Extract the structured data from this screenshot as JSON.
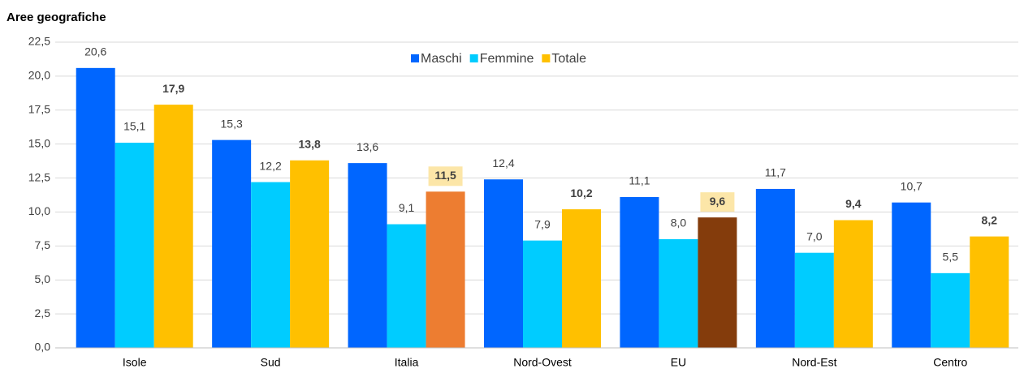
{
  "chart_data": {
    "type": "bar",
    "title": "Aree geografiche",
    "categories": [
      "Isole",
      "Sud",
      "Italia",
      "Nord-Ovest",
      "EU",
      "Nord-Est",
      "Centro"
    ],
    "series": [
      {
        "name": "Maschi",
        "color": "#0066FF",
        "values": [
          20.6,
          15.3,
          13.6,
          12.4,
          11.1,
          11.7,
          10.7
        ],
        "value_labels": [
          "20,6",
          "15,3",
          "13,6",
          "12,4",
          "11,1",
          "11,7",
          "10,7"
        ]
      },
      {
        "name": "Femmine",
        "color": "#00CCFF",
        "values": [
          15.1,
          12.2,
          9.1,
          7.9,
          8.0,
          7.0,
          5.5
        ],
        "value_labels": [
          "15,1",
          "12,2",
          "9,1",
          "7,9",
          "8,0",
          "7,0",
          "5,5"
        ]
      },
      {
        "name": "Totale",
        "color": "#FFC000",
        "values": [
          17.9,
          13.8,
          11.5,
          10.2,
          9.6,
          9.4,
          8.2
        ],
        "value_labels": [
          "17,9",
          "13,8",
          "11,5",
          "10,2",
          "9,6",
          "9,4",
          "8,2"
        ],
        "colors": [
          "#FFC000",
          "#FFC000",
          "#ED7D31",
          "#FFC000",
          "#843C0C",
          "#FFC000",
          "#FFC000"
        ],
        "label_backgrounds": [
          null,
          null,
          "#FCE6A8",
          null,
          "#FCE6A8",
          null,
          null
        ],
        "bold_labels": true
      }
    ],
    "ylim": [
      0,
      22.5
    ],
    "yticks": [
      {
        "value": 0,
        "label": "0,0"
      },
      {
        "value": 2.5,
        "label": "2,5"
      },
      {
        "value": 5,
        "label": "5,0"
      },
      {
        "value": 7.5,
        "label": "7,5"
      },
      {
        "value": 10,
        "label": "10,0"
      },
      {
        "value": 12.5,
        "label": "12,5"
      },
      {
        "value": 15,
        "label": "15,0"
      },
      {
        "value": 17.5,
        "label": "17,5"
      },
      {
        "value": 20,
        "label": "20,0"
      },
      {
        "value": 22.5,
        "label": "22,5"
      }
    ],
    "grid": true,
    "legend": "top"
  }
}
